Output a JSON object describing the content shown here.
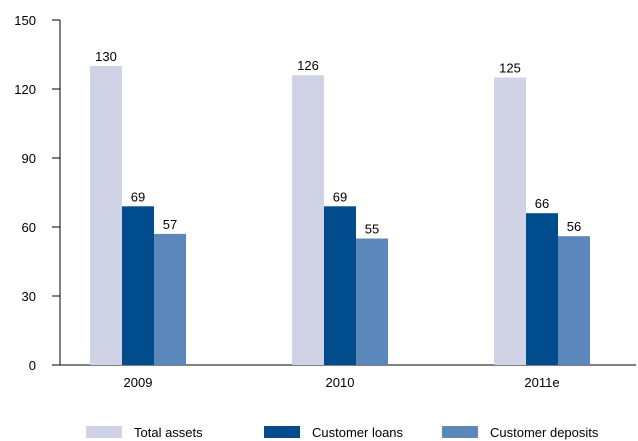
{
  "chart_data": {
    "type": "bar",
    "categories": [
      "2009",
      "2010",
      "2011e"
    ],
    "series": [
      {
        "name": "Total assets",
        "values": [
          130,
          126,
          125
        ],
        "color": "#d0d3e6"
      },
      {
        "name": "Customer loans",
        "values": [
          69,
          69,
          66
        ],
        "color": "#004c8c"
      },
      {
        "name": "Customer deposits",
        "values": [
          57,
          55,
          56
        ],
        "color": "#5c87bb"
      }
    ],
    "title": "",
    "xlabel": "",
    "ylabel": "",
    "ylim": [
      0,
      150
    ],
    "yticks": [
      0,
      30,
      60,
      90,
      120,
      150
    ],
    "grid": false,
    "legend_position": "bottom"
  }
}
